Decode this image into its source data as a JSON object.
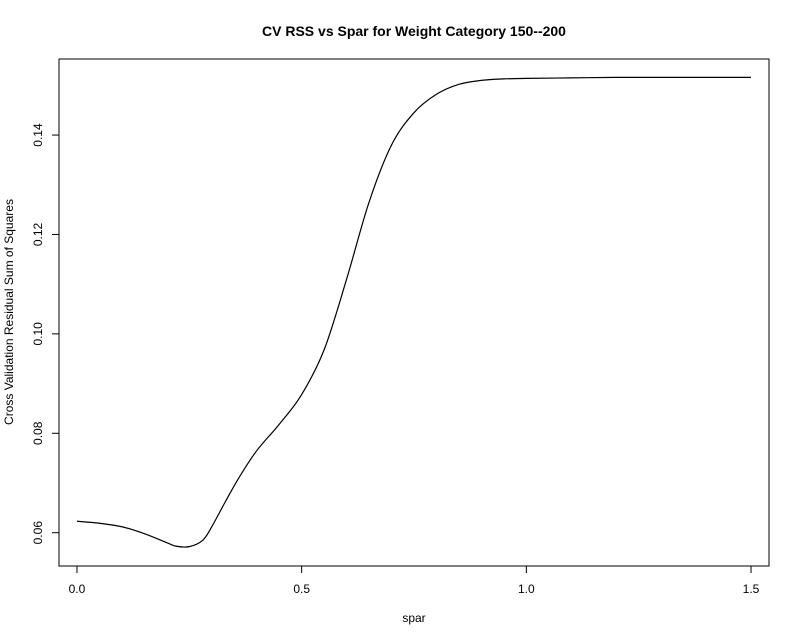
{
  "chart_data": {
    "type": "line",
    "title": "CV RSS vs Spar for Weight Category 150--200",
    "xlabel": "spar",
    "ylabel": "Cross Validation Residual Sum of Squares",
    "xlim": [
      -0.04,
      1.54
    ],
    "ylim": [
      0.0533,
      0.1553
    ],
    "x_ticks": [
      "0.0",
      "0.5",
      "1.0",
      "1.5"
    ],
    "y_ticks": [
      "0.06",
      "0.08",
      "0.10",
      "0.12",
      "0.14"
    ],
    "grid": false,
    "series": [
      {
        "x": [
          0.0,
          0.05,
          0.1,
          0.15,
          0.2,
          0.22,
          0.25,
          0.28,
          0.3,
          0.33,
          0.36,
          0.4,
          0.45,
          0.5,
          0.55,
          0.6,
          0.65,
          0.7,
          0.75,
          0.8,
          0.85,
          0.9,
          0.95,
          1.0,
          1.1,
          1.2,
          1.3,
          1.4,
          1.5
        ],
        "values": [
          0.0623,
          0.0619,
          0.0612,
          0.0598,
          0.058,
          0.0573,
          0.0572,
          0.0585,
          0.0612,
          0.0662,
          0.071,
          0.0765,
          0.0818,
          0.0878,
          0.0968,
          0.111,
          0.1265,
          0.138,
          0.1445,
          0.1482,
          0.1502,
          0.151,
          0.1513,
          0.1514,
          0.1515,
          0.1516,
          0.1516,
          0.1516,
          0.1516
        ]
      }
    ]
  }
}
